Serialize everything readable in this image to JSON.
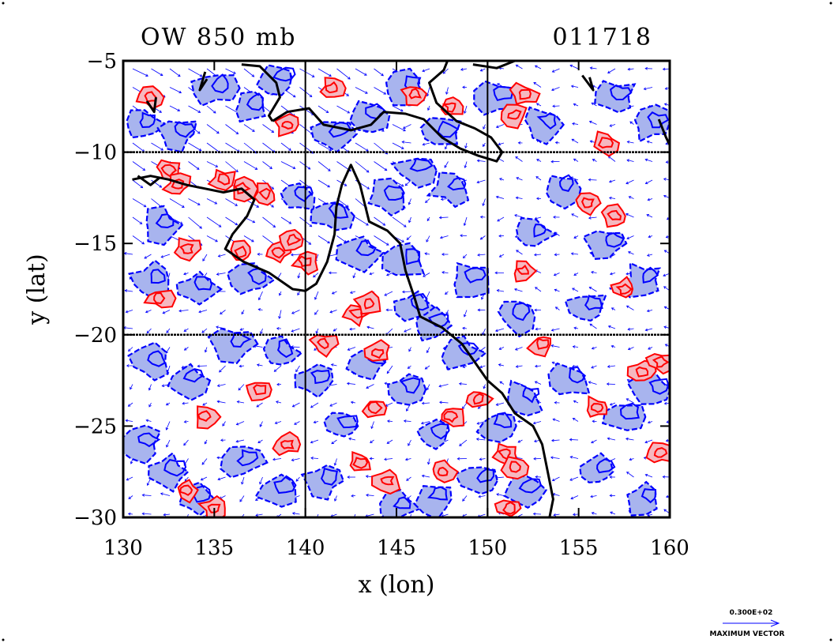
{
  "chart_data": {
    "type": "heatmap",
    "title": "OW 850 mb",
    "time_label": "011718",
    "xlabel": "x (lon)",
    "ylabel": "y (lat)",
    "xlim": [
      130,
      160
    ],
    "ylim": [
      -30,
      -5
    ],
    "x_ticks": [
      130,
      135,
      140,
      145,
      150,
      155,
      160
    ],
    "y_ticks": [
      -5,
      -10,
      -15,
      -20,
      -25,
      -30
    ],
    "x_tick_labels": [
      "130",
      "135",
      "140",
      "145",
      "150",
      "155",
      "160"
    ],
    "y_tick_labels": [
      "−5",
      "−10",
      "−15",
      "−20",
      "−25",
      "−30"
    ],
    "grid": true,
    "grid_lines": {
      "lon": [
        140,
        150
      ],
      "lat": [
        -10,
        -20
      ]
    },
    "positive_contour_color": "#ff0000",
    "positive_fill_color": "#f5b8c0",
    "negative_contour_color": "#0000ff",
    "negative_fill_color": "#a8b4ee",
    "coastline_color": "#000000",
    "vector_color": "#0000ff",
    "reference_vector": {
      "value_label": "0.300E+02",
      "caption": "MAXIMUM VECTOR"
    },
    "red_features": [
      [
        131.5,
        -7.0
      ],
      [
        132.5,
        -11.0
      ],
      [
        133.0,
        -11.8
      ],
      [
        135.5,
        -11.5
      ],
      [
        136.5,
        -12.0
      ],
      [
        137.8,
        -12.3
      ],
      [
        133.5,
        -15.3
      ],
      [
        132.0,
        -18.0
      ],
      [
        136.5,
        -15.5
      ],
      [
        138.5,
        -15.5
      ],
      [
        139.3,
        -14.8
      ],
      [
        140.0,
        -16.0
      ],
      [
        142.8,
        -18.8
      ],
      [
        143.5,
        -18.3
      ],
      [
        144.0,
        -21.0
      ],
      [
        143.8,
        -24.0
      ],
      [
        141.0,
        -20.5
      ],
      [
        143.0,
        -27.0
      ],
      [
        144.5,
        -28.0
      ],
      [
        148.0,
        -24.5
      ],
      [
        149.5,
        -23.5
      ],
      [
        151.0,
        -26.5
      ],
      [
        151.5,
        -27.2
      ],
      [
        151.2,
        -29.5
      ],
      [
        155.5,
        -12.8
      ],
      [
        157.0,
        -13.5
      ],
      [
        152.0,
        -16.5
      ],
      [
        157.5,
        -17.5
      ],
      [
        153.0,
        -20.5
      ],
      [
        158.5,
        -22.0
      ],
      [
        159.5,
        -21.5
      ],
      [
        156.0,
        -24.0
      ],
      [
        159.5,
        -26.5
      ],
      [
        133.5,
        -28.5
      ],
      [
        135.0,
        -29.5
      ],
      [
        146.0,
        -6.8
      ],
      [
        148.0,
        -7.5
      ],
      [
        151.5,
        -8.0
      ],
      [
        152.0,
        -6.8
      ],
      [
        156.5,
        -9.5
      ],
      [
        139.0,
        -8.5
      ],
      [
        141.5,
        -6.5
      ],
      [
        137.5,
        -23.0
      ],
      [
        134.5,
        -24.5
      ],
      [
        139.0,
        -26.0
      ],
      [
        147.5,
        -27.5
      ]
    ],
    "blue_features": [
      [
        131.0,
        -8.5
      ],
      [
        133.0,
        -9.0
      ],
      [
        135.0,
        -6.5
      ],
      [
        137.0,
        -7.5
      ],
      [
        138.5,
        -6.0
      ],
      [
        141.5,
        -9.0
      ],
      [
        143.5,
        -8.0
      ],
      [
        145.5,
        -6.5
      ],
      [
        147.5,
        -9.0
      ],
      [
        150.5,
        -7.0
      ],
      [
        153.0,
        -8.5
      ],
      [
        157.0,
        -7.0
      ],
      [
        159.0,
        -8.5
      ],
      [
        132.0,
        -14.0
      ],
      [
        134.0,
        -17.5
      ],
      [
        131.5,
        -17.0
      ],
      [
        137.0,
        -17.0
      ],
      [
        139.5,
        -12.5
      ],
      [
        141.5,
        -13.5
      ],
      [
        143.0,
        -15.5
      ],
      [
        144.5,
        -12.5
      ],
      [
        146.0,
        -11.0
      ],
      [
        148.0,
        -12.0
      ],
      [
        145.5,
        -16.0
      ],
      [
        147.0,
        -19.5
      ],
      [
        149.0,
        -17.0
      ],
      [
        152.5,
        -14.5
      ],
      [
        154.0,
        -12.0
      ],
      [
        156.5,
        -15.0
      ],
      [
        158.5,
        -17.0
      ],
      [
        155.5,
        -18.5
      ],
      [
        151.5,
        -19.0
      ],
      [
        131.5,
        -21.5
      ],
      [
        133.5,
        -22.5
      ],
      [
        136.0,
        -20.5
      ],
      [
        138.5,
        -21.0
      ],
      [
        140.5,
        -22.5
      ],
      [
        142.0,
        -25.0
      ],
      [
        145.5,
        -23.0
      ],
      [
        147.0,
        -25.5
      ],
      [
        148.5,
        -21.0
      ],
      [
        150.5,
        -25.0
      ],
      [
        152.0,
        -23.5
      ],
      [
        154.5,
        -22.5
      ],
      [
        157.5,
        -24.5
      ],
      [
        159.0,
        -23.0
      ],
      [
        131.0,
        -26.0
      ],
      [
        132.5,
        -27.5
      ],
      [
        134.0,
        -29.0
      ],
      [
        136.5,
        -27.0
      ],
      [
        138.5,
        -28.5
      ],
      [
        141.0,
        -28.0
      ],
      [
        145.0,
        -29.5
      ],
      [
        147.0,
        -29.0
      ],
      [
        149.5,
        -28.0
      ],
      [
        152.0,
        -28.5
      ],
      [
        156.0,
        -27.5
      ],
      [
        158.5,
        -29.0
      ],
      [
        143.5,
        -21.5
      ],
      [
        146.0,
        -18.5
      ]
    ],
    "coastlines": [
      [
        [
          130.5,
          -11.5
        ],
        [
          131.5,
          -11.3
        ],
        [
          132.5,
          -11.5
        ],
        [
          133.5,
          -11.8
        ],
        [
          134.5,
          -12.0
        ],
        [
          135.5,
          -12.2
        ],
        [
          136.5,
          -12.0
        ],
        [
          137.2,
          -12.6
        ],
        [
          136.8,
          -13.5
        ],
        [
          136.0,
          -14.5
        ],
        [
          135.6,
          -15.3
        ],
        [
          136.6,
          -16.0
        ],
        [
          138.0,
          -16.6
        ],
        [
          139.3,
          -17.5
        ],
        [
          140.0,
          -17.6
        ],
        [
          140.6,
          -17.2
        ],
        [
          141.2,
          -16.0
        ],
        [
          141.6,
          -14.5
        ],
        [
          141.7,
          -13.0
        ],
        [
          142.0,
          -11.8
        ],
        [
          142.5,
          -10.7
        ],
        [
          143.0,
          -11.8
        ],
        [
          143.5,
          -13.8
        ],
        [
          144.5,
          -14.3
        ],
        [
          145.2,
          -15.0
        ],
        [
          145.5,
          -16.5
        ],
        [
          146.0,
          -18.0
        ],
        [
          146.3,
          -19.0
        ],
        [
          147.5,
          -19.6
        ],
        [
          148.6,
          -20.5
        ],
        [
          149.3,
          -21.5
        ],
        [
          150.0,
          -22.5
        ],
        [
          150.8,
          -23.2
        ],
        [
          151.5,
          -24.3
        ],
        [
          152.5,
          -25.0
        ],
        [
          153.0,
          -26.0
        ],
        [
          153.3,
          -27.5
        ],
        [
          153.6,
          -29.0
        ],
        [
          153.4,
          -30.0
        ]
      ],
      [
        [
          138.2,
          -8.3
        ],
        [
          139.0,
          -7.8
        ],
        [
          140.2,
          -7.6
        ],
        [
          141.0,
          -8.5
        ],
        [
          142.5,
          -8.8
        ],
        [
          143.6,
          -8.5
        ],
        [
          144.3,
          -7.8
        ],
        [
          145.5,
          -7.9
        ],
        [
          146.5,
          -8.2
        ],
        [
          147.5,
          -9.2
        ],
        [
          148.5,
          -9.8
        ],
        [
          149.5,
          -10.2
        ],
        [
          150.5,
          -10.5
        ],
        [
          150.8,
          -10.0
        ],
        [
          150.2,
          -9.2
        ],
        [
          149.3,
          -8.7
        ],
        [
          148.3,
          -8.3
        ],
        [
          147.2,
          -7.3
        ],
        [
          146.8,
          -6.2
        ],
        [
          147.6,
          -5.5
        ],
        [
          147.8,
          -5.0
        ]
      ],
      [
        [
          136.5,
          -5.2
        ],
        [
          137.5,
          -5.3
        ],
        [
          138.4,
          -6.2
        ],
        [
          138.6,
          -7.0
        ],
        [
          138.0,
          -8.0
        ],
        [
          138.2,
          -8.3
        ]
      ],
      [
        [
          149.2,
          -5.2
        ],
        [
          150.5,
          -5.4
        ],
        [
          151.5,
          -5.0
        ],
        [
          152.0,
          -4.6
        ]
      ],
      [
        [
          134.5,
          -5.6
        ],
        [
          134.2,
          -6.6
        ],
        [
          134.6,
          -6.0
        ]
      ],
      [
        [
          131.3,
          -7.2
        ],
        [
          131.7,
          -7.8
        ],
        [
          131.8,
          -7.0
        ]
      ],
      [
        [
          155.2,
          -5.8
        ],
        [
          155.8,
          -6.6
        ],
        [
          155.6,
          -5.9
        ]
      ],
      [
        [
          159.4,
          -8.2
        ],
        [
          159.8,
          -9.2
        ],
        [
          160.0,
          -9.6
        ]
      ],
      [
        [
          130.8,
          -11.3
        ],
        [
          131.5,
          -11.8
        ],
        [
          132.0,
          -11.4
        ]
      ]
    ]
  }
}
